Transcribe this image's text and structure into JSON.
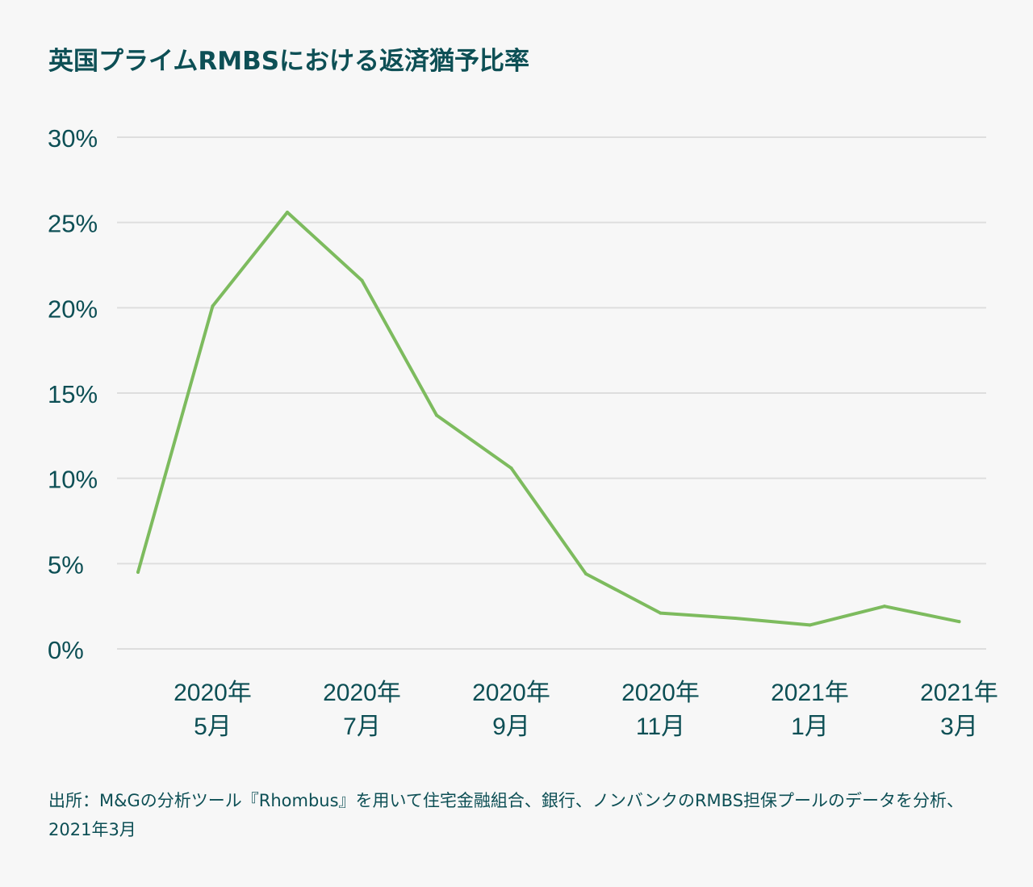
{
  "chart_data": {
    "type": "line",
    "title": "英国プライムRMBSにおける返済猶予比率",
    "y_ticks": [
      "30%",
      "25%",
      "20%",
      "15%",
      "10%",
      "5%",
      "0%"
    ],
    "ylim": [
      0,
      30
    ],
    "x_tick_labels": [
      [
        "2020年",
        "5月"
      ],
      [
        "2020年",
        "7月"
      ],
      [
        "2020年",
        "9月"
      ],
      [
        "2020年",
        "11月"
      ],
      [
        "2021年",
        "1月"
      ],
      [
        "2021年",
        "3月"
      ]
    ],
    "x_tick_months": [
      1,
      3,
      5,
      7,
      9,
      11
    ],
    "x": [
      "2020年4月",
      "2020年5月",
      "2020年6月",
      "2020年7月",
      "2020年8月",
      "2020年9月",
      "2020年10月",
      "2020年11月",
      "2020年12月",
      "2021年1月",
      "2021年2月",
      "2021年3月"
    ],
    "series": [
      {
        "values": [
          4.5,
          20.1,
          25.6,
          21.6,
          13.7,
          10.6,
          4.4,
          2.1,
          1.8,
          1.4,
          2.5,
          1.6
        ]
      }
    ],
    "grid": true,
    "line_color": "#7dbb5e",
    "grid_color": "#dedede",
    "text_color": "#0d4f55"
  },
  "source_note": "出所：M&Gの分析ツール『Rhombus』を用いて住宅金融組合、銀行、ノンバンクのRMBS担保プールのデータを分析、2021年3月"
}
